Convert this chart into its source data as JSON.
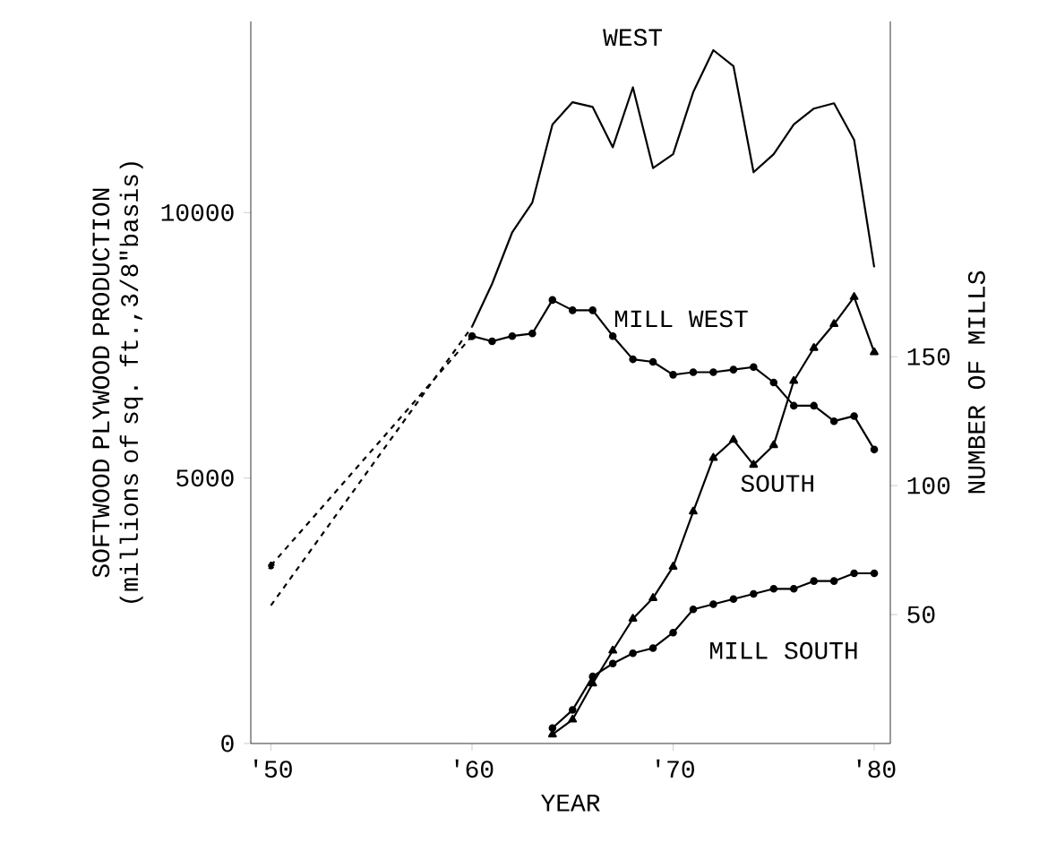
{
  "chart_data": {
    "type": "line",
    "xlabel": "YEAR",
    "ylabel": "SOFTWOOD PLYWOOD PRODUCTION (millions of sq. ft.,3/8\"basis)",
    "y2label": "NUMBER OF MILLS",
    "xlim": [
      1949,
      1980.8
    ],
    "xticks": [
      {
        "value": 1950,
        "label": "'50"
      },
      {
        "value": 1960,
        "label": "'60"
      },
      {
        "value": 1970,
        "label": "'70"
      },
      {
        "value": 1980,
        "label": "'80"
      }
    ],
    "ylim": [
      0,
      13600
    ],
    "yticks": [
      0,
      5000,
      10000
    ],
    "y2lim": [
      0,
      280
    ],
    "y2ticks": [
      50,
      100,
      150
    ],
    "series": [
      {
        "name": "WEST",
        "color": "#000000",
        "marker": "none",
        "line_style": "solid",
        "x": [
          1960,
          1961,
          1962,
          1963,
          1964,
          1965,
          1966,
          1967,
          1968,
          1969,
          1970,
          1971,
          1972,
          1973,
          1974,
          1975,
          1976,
          1977,
          1978,
          1979,
          1980
        ],
        "values": [
          7850,
          8660,
          9630,
          10190,
          11660,
          12080,
          11990,
          11230,
          12360,
          10840,
          11100,
          12270,
          13060,
          12760,
          10760,
          11100,
          11660,
          11960,
          12060,
          11370,
          8970
        ]
      },
      {
        "name": "MILL WEST",
        "color": "#000000",
        "marker": "circle",
        "line_style": "solid",
        "axis": "y2",
        "x": [
          1960,
          1961,
          1962,
          1963,
          1964,
          1965,
          1966,
          1967,
          1968,
          1969,
          1970,
          1971,
          1972,
          1973,
          1974,
          1975,
          1976,
          1977,
          1978,
          1979,
          1980
        ],
        "values": [
          158,
          156,
          158,
          159,
          172,
          168,
          168,
          158,
          149,
          148,
          143,
          144,
          144,
          145,
          146,
          140,
          131,
          131,
          125,
          127,
          114
        ]
      },
      {
        "name": "SOUTH",
        "color": "#000000",
        "marker": "triangle",
        "line_style": "solid",
        "x": [
          1964,
          1965,
          1966,
          1967,
          1968,
          1969,
          1970,
          1971,
          1972,
          1973,
          1974,
          1975,
          1976,
          1977,
          1978,
          1979,
          1980
        ],
        "values": [
          170,
          450,
          1130,
          1750,
          2350,
          2740,
          3330,
          4370,
          5380,
          5720,
          5250,
          5620,
          6830,
          7450,
          7900,
          8410,
          7370
        ]
      },
      {
        "name": "MILL SOUTH",
        "color": "#000000",
        "marker": "circle",
        "line_style": "solid",
        "axis": "y2",
        "x": [
          1964,
          1965,
          1966,
          1967,
          1968,
          1969,
          1970,
          1971,
          1972,
          1973,
          1974,
          1975,
          1976,
          1977,
          1978,
          1979,
          1980
        ],
        "values": [
          6,
          13,
          26,
          31,
          35,
          37,
          43,
          52,
          54,
          56,
          58,
          60,
          60,
          63,
          63,
          66,
          66
        ]
      },
      {
        "color": "#000000",
        "marker": "none",
        "line_style": "dashed",
        "x": [
          1950,
          1960
        ],
        "values": [
          2600,
          7850
        ]
      },
      {
        "color": "#000000",
        "marker": "circle",
        "line_style": "dashed",
        "axis": "y2",
        "x": [
          1950,
          1960
        ],
        "values": [
          69,
          158
        ]
      }
    ]
  }
}
